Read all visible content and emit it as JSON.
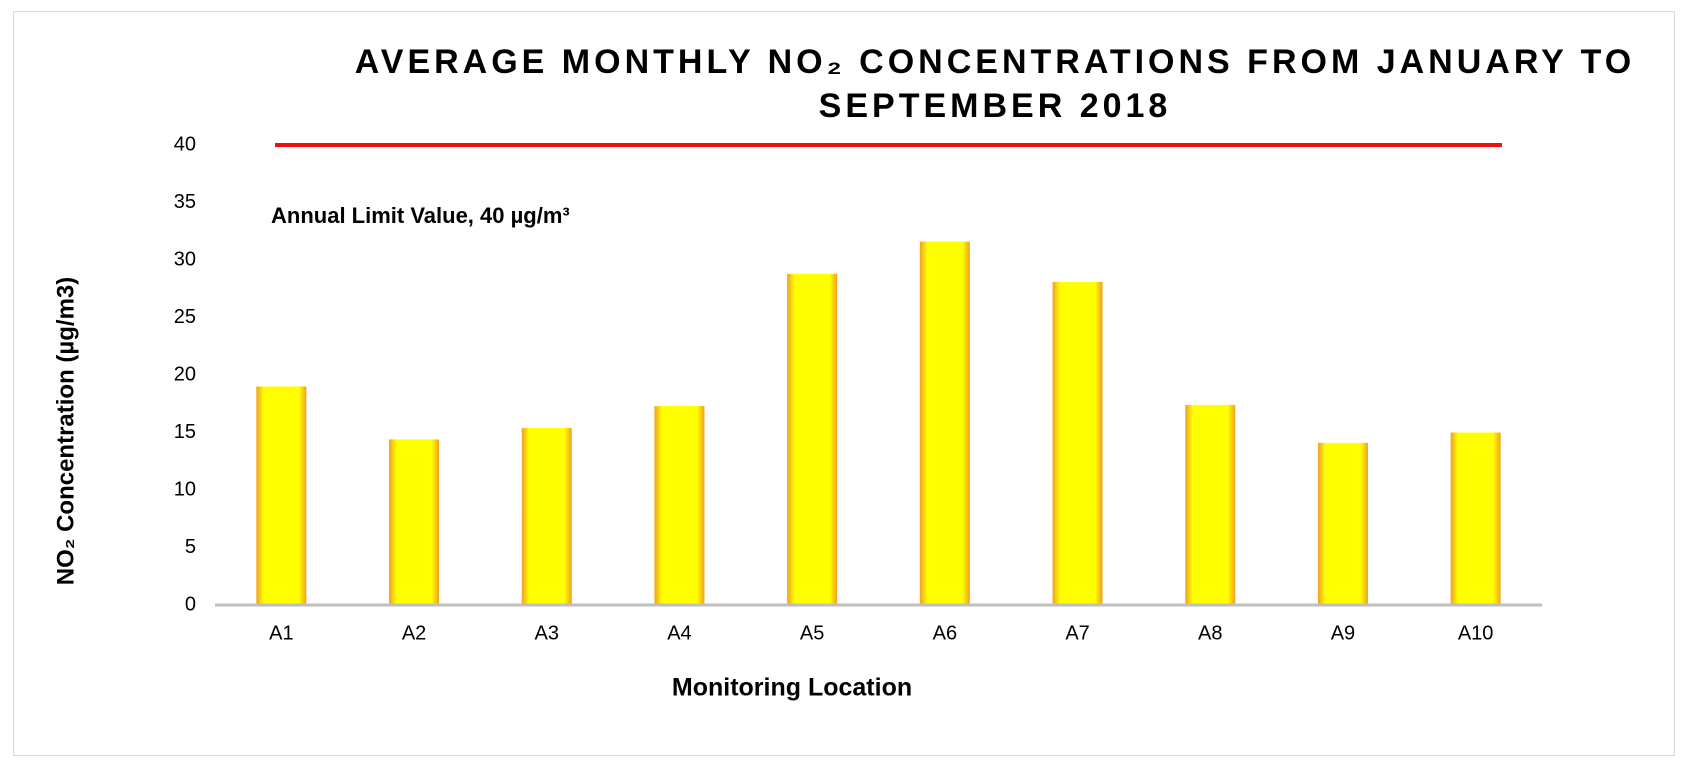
{
  "chart_data": {
    "type": "bar",
    "title": "AVERAGE MONTHLY NO₂ CONCENTRATIONS FROM JANUARY TO SEPTEMBER 2018",
    "x_label": "Monitoring Location",
    "y_label": "NO₂ Concentration (µg/m3)",
    "categories": [
      "A1",
      "A2",
      "A3",
      "A4",
      "A5",
      "A6",
      "A7",
      "A8",
      "A9",
      "A10"
    ],
    "values": [
      19.0,
      14.4,
      15.4,
      17.3,
      28.8,
      31.6,
      28.1,
      17.4,
      14.1,
      15.0
    ],
    "color": "#ffff00",
    "ylim": [
      0,
      40
    ],
    "yticks": [
      0,
      5,
      10,
      15,
      20,
      25,
      30,
      35,
      40
    ],
    "grid": false,
    "limit_line": {
      "value": 40,
      "label": "Annual Limit Value, 40 µg/m³",
      "color": "#ee1111"
    }
  }
}
